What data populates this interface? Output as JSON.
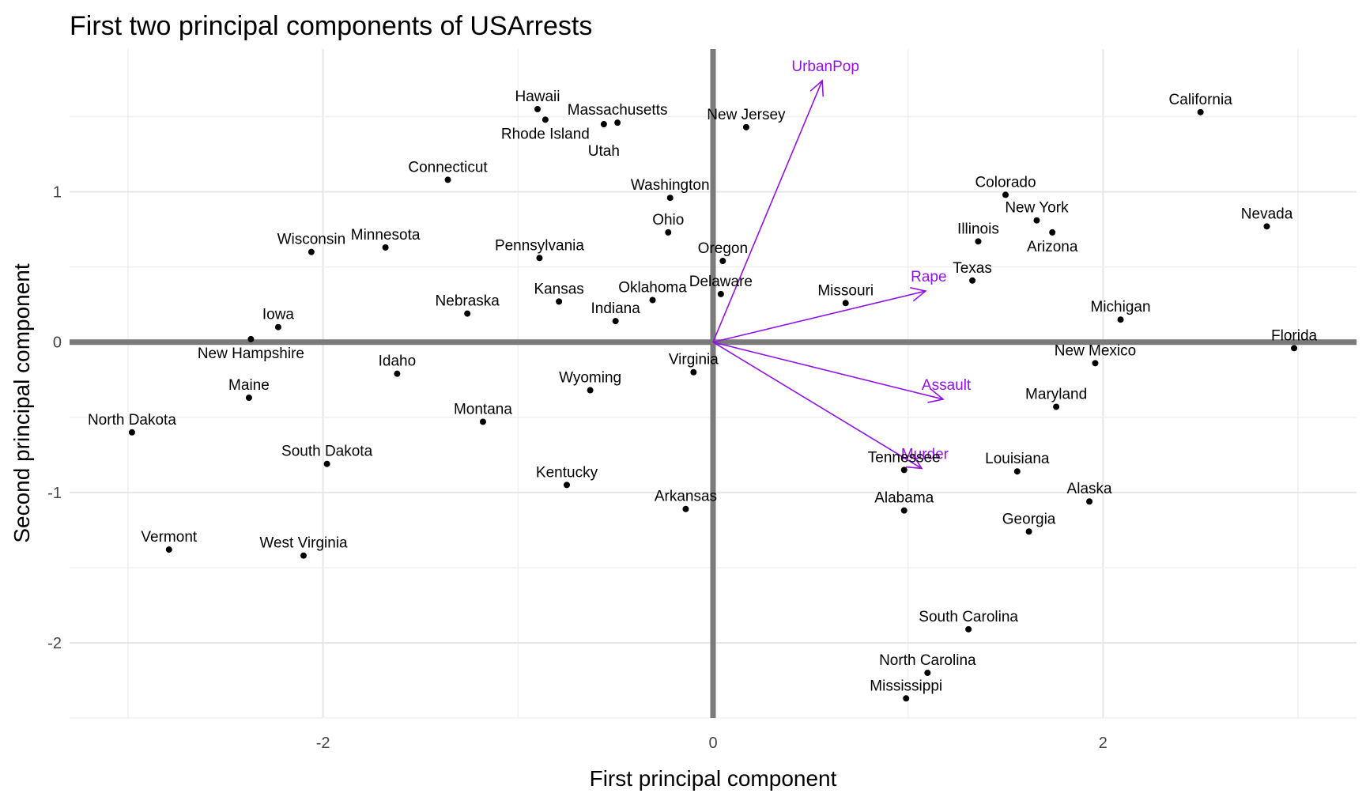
{
  "chart_data": {
    "type": "scatter",
    "title": "First two principal components of USArrests",
    "xlabel": "First principal component",
    "ylabel": "Second principal component",
    "xlim": [
      -3.3,
      3.3
    ],
    "ylim": [
      -2.5,
      1.95
    ],
    "x_ticks": [
      -2,
      0,
      2
    ],
    "y_ticks": [
      -2,
      -1,
      0,
      1
    ],
    "x_tick_labels": [
      "-2",
      "0",
      "2"
    ],
    "y_tick_labels": [
      "-2",
      "-1",
      "0",
      "1"
    ],
    "grid": true,
    "point_color": "#000000",
    "loading_color": "#9012E6",
    "zero_line_color": "#7a7a7a",
    "points": [
      {
        "label": "Hawaii",
        "x": -0.9,
        "y": 1.55
      },
      {
        "label": "Rhode Island",
        "x": -0.86,
        "y": 1.48
      },
      {
        "label": "Massachusetts",
        "x": -0.49,
        "y": 1.46
      },
      {
        "label": "Utah",
        "x": -0.56,
        "y": 1.45
      },
      {
        "label": "New Jersey",
        "x": 0.17,
        "y": 1.43
      },
      {
        "label": "California",
        "x": 2.5,
        "y": 1.53
      },
      {
        "label": "Connecticut",
        "x": -1.36,
        "y": 1.08
      },
      {
        "label": "Washington",
        "x": -0.22,
        "y": 0.96
      },
      {
        "label": "Colorado",
        "x": 1.5,
        "y": 0.98
      },
      {
        "label": "New York",
        "x": 1.66,
        "y": 0.81
      },
      {
        "label": "Ohio",
        "x": -0.23,
        "y": 0.73
      },
      {
        "label": "Arizona",
        "x": 1.74,
        "y": 0.73
      },
      {
        "label": "Nevada",
        "x": 2.84,
        "y": 0.77
      },
      {
        "label": "Illinois",
        "x": 1.36,
        "y": 0.67
      },
      {
        "label": "Minnesota",
        "x": -1.68,
        "y": 0.63
      },
      {
        "label": "Wisconsin",
        "x": -2.06,
        "y": 0.6
      },
      {
        "label": "Pennsylvania",
        "x": -0.89,
        "y": 0.56
      },
      {
        "label": "Oregon",
        "x": 0.05,
        "y": 0.54
      },
      {
        "label": "Texas",
        "x": 1.33,
        "y": 0.41
      },
      {
        "label": "Delaware",
        "x": 0.04,
        "y": 0.32
      },
      {
        "label": "Kansas",
        "x": -0.79,
        "y": 0.27
      },
      {
        "label": "Missouri",
        "x": 0.68,
        "y": 0.26
      },
      {
        "label": "Oklahoma",
        "x": -0.31,
        "y": 0.28
      },
      {
        "label": "Nebraska",
        "x": -1.26,
        "y": 0.19
      },
      {
        "label": "Indiana",
        "x": -0.5,
        "y": 0.14
      },
      {
        "label": "Michigan",
        "x": 2.09,
        "y": 0.15
      },
      {
        "label": "Iowa",
        "x": -2.23,
        "y": 0.1
      },
      {
        "label": "New Hampshire",
        "x": -2.37,
        "y": 0.02
      },
      {
        "label": "Florida",
        "x": 2.98,
        "y": -0.04
      },
      {
        "label": "New Mexico",
        "x": 1.96,
        "y": -0.14
      },
      {
        "label": "Idaho",
        "x": -1.62,
        "y": -0.21
      },
      {
        "label": "Virginia",
        "x": -0.1,
        "y": -0.2
      },
      {
        "label": "Wyoming",
        "x": -0.63,
        "y": -0.32
      },
      {
        "label": "Maine",
        "x": -2.38,
        "y": -0.37
      },
      {
        "label": "Maryland",
        "x": 1.76,
        "y": -0.43
      },
      {
        "label": "Montana",
        "x": -1.18,
        "y": -0.53
      },
      {
        "label": "North Dakota",
        "x": -2.98,
        "y": -0.6
      },
      {
        "label": "South Dakota",
        "x": -1.98,
        "y": -0.81
      },
      {
        "label": "Tennessee",
        "x": 0.98,
        "y": -0.85
      },
      {
        "label": "Louisiana",
        "x": 1.56,
        "y": -0.86
      },
      {
        "label": "Kentucky",
        "x": -0.75,
        "y": -0.95
      },
      {
        "label": "Alaska",
        "x": 1.93,
        "y": -1.06
      },
      {
        "label": "Arkansas",
        "x": -0.14,
        "y": -1.11
      },
      {
        "label": "Alabama",
        "x": 0.98,
        "y": -1.12
      },
      {
        "label": "Georgia",
        "x": 1.62,
        "y": -1.26
      },
      {
        "label": "Vermont",
        "x": -2.79,
        "y": -1.38
      },
      {
        "label": "West Virginia",
        "x": -2.1,
        "y": -1.42
      },
      {
        "label": "South Carolina",
        "x": 1.31,
        "y": -1.91
      },
      {
        "label": "North Carolina",
        "x": 1.1,
        "y": -2.2
      },
      {
        "label": "Mississippi",
        "x": 0.99,
        "y": -2.37
      }
    ],
    "loadings": [
      {
        "label": "UrbanPop",
        "x": 0.56,
        "y": 1.74
      },
      {
        "label": "Rape",
        "x": 1.09,
        "y": 0.34
      },
      {
        "label": "Assault",
        "x": 1.18,
        "y": -0.38
      },
      {
        "label": "Murder",
        "x": 1.07,
        "y": -0.84
      }
    ]
  }
}
